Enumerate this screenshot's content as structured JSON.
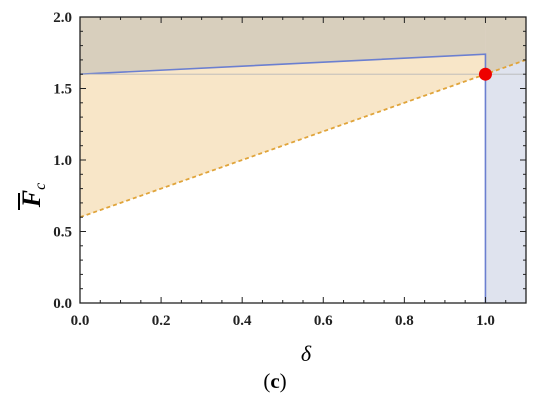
{
  "chart_data": {
    "type": "area",
    "xlabel": "δ",
    "ylabel_main": "F",
    "ylabel_sub": "c",
    "caption_open": "(",
    "caption_letter": "c",
    "caption_close": ")",
    "xlim": [
      0.0,
      1.1
    ],
    "ylim": [
      0.0,
      2.0
    ],
    "x_ticks": [
      "0.0",
      "0.2",
      "0.4",
      "0.6",
      "0.8",
      "1.0"
    ],
    "y_ticks": [
      "0.0",
      "0.5",
      "1.0",
      "1.5",
      "2.0"
    ],
    "x_tick_values": [
      0.0,
      0.2,
      0.4,
      0.6,
      0.8,
      1.0
    ],
    "y_tick_values": [
      0.0,
      0.5,
      1.0,
      1.5,
      2.0
    ],
    "grid": false,
    "series": [
      {
        "x": [
          0.0,
          1.0,
          1.0
        ],
        "y": [
          1.6,
          1.74,
          0.0
        ],
        "color": "#6b7fd0",
        "style": "solid"
      },
      {
        "x": [
          0.0,
          1.1
        ],
        "y": [
          0.6,
          1.7
        ],
        "color": "#e0a43a",
        "style": "dashed"
      },
      {
        "x": [
          0.0,
          1.1
        ],
        "y": [
          1.6,
          1.6
        ],
        "color": "#b8b8b8",
        "style": "solid-thin"
      }
    ],
    "regions": [
      {
        "polygon": [
          [
            0.0,
            0.6
          ],
          [
            1.0,
            1.6
          ],
          [
            1.0,
            1.74
          ],
          [
            0.0,
            1.6
          ]
        ],
        "color": "#f8e6c8"
      },
      {
        "polygon": [
          [
            0.0,
            1.6
          ],
          [
            1.0,
            1.74
          ],
          [
            1.0,
            2.0
          ],
          [
            0.0,
            2.0
          ]
        ],
        "color": "#d8cfbd"
      },
      {
        "polygon": [
          [
            1.0,
            1.6
          ],
          [
            1.1,
            1.7
          ],
          [
            1.1,
            2.0
          ],
          [
            1.0,
            2.0
          ],
          [
            1.0,
            1.74
          ]
        ],
        "color": "#d8cfbd"
      },
      {
        "polygon": [
          [
            1.0,
            0.0
          ],
          [
            1.1,
            0.0
          ],
          [
            1.1,
            1.7
          ],
          [
            1.0,
            1.6
          ]
        ],
        "color": "#dfe3ee"
      }
    ],
    "points": [
      {
        "x": 1.0,
        "y": 1.6,
        "color": "#ee0000"
      }
    ]
  }
}
